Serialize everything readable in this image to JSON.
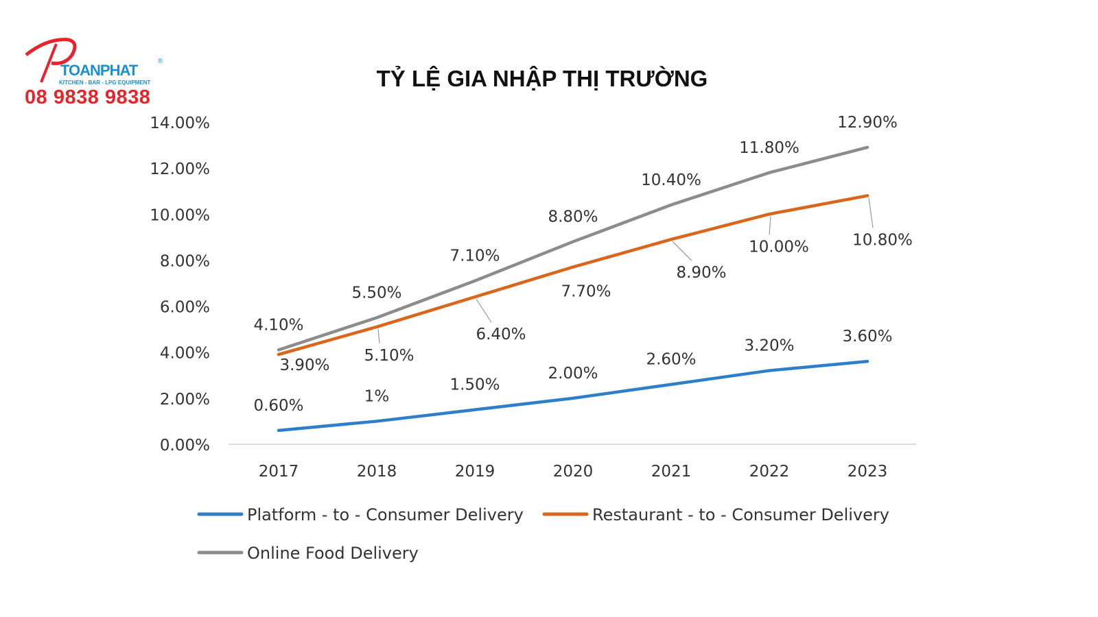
{
  "logo": {
    "brand": "TOANPHAT",
    "registered": "®",
    "tagline": "KITCHEN - BAR - LPG EQUIPMENT",
    "phone": "08 9838 9838"
  },
  "chart_data": {
    "type": "line",
    "title": "TỶ LỆ GIA NHẬP THỊ TRƯỜNG",
    "xlabel": "",
    "ylabel": "",
    "categories": [
      "2017",
      "2018",
      "2019",
      "2020",
      "2021",
      "2022",
      "2023"
    ],
    "ylim": [
      0,
      14
    ],
    "yticks": [
      "0.00%",
      "2.00%",
      "4.00%",
      "6.00%",
      "8.00%",
      "10.00%",
      "12.00%",
      "14.00%"
    ],
    "grid": false,
    "legend_position": "bottom",
    "series": [
      {
        "name": "Platform - to - Consumer Delivery",
        "color": "#2e7fc9",
        "values": [
          0.6,
          1.0,
          1.5,
          2.0,
          2.6,
          3.2,
          3.6
        ],
        "labels": [
          "0.60%",
          "1%",
          "1.50%",
          "2.00%",
          "2.60%",
          "3.20%",
          "3.60%"
        ]
      },
      {
        "name": "Restaurant - to - Consumer Delivery",
        "color": "#d9661a",
        "values": [
          3.9,
          5.1,
          6.4,
          7.7,
          8.9,
          10.0,
          10.8
        ],
        "labels": [
          "3.90%",
          "5.10%",
          "6.40%",
          "7.70%",
          "8.90%",
          "10.00%",
          "10.80%"
        ]
      },
      {
        "name": "Online Food Delivery",
        "color": "#8c8c8c",
        "values": [
          4.1,
          5.5,
          7.1,
          8.8,
          10.4,
          11.8,
          12.9
        ],
        "labels": [
          "4.10%",
          "5.50%",
          "7.10%",
          "8.80%",
          "10.40%",
          "11.80%",
          "12.90%"
        ]
      }
    ]
  }
}
